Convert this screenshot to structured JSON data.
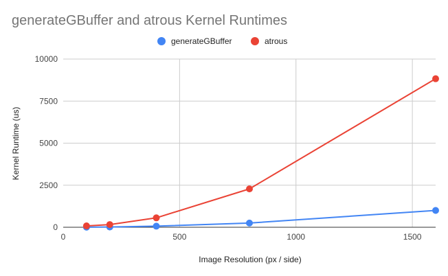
{
  "chart_data": {
    "type": "line",
    "title": "generateGBuffer and atrous Kernel Runtimes",
    "xlabel": "Image Resolution (px / side)",
    "ylabel": "Kernel Runtime (us)",
    "xlim": [
      0,
      1600
    ],
    "ylim": [
      0,
      10000
    ],
    "x_ticks": [
      "0",
      "500",
      "1000",
      "1500"
    ],
    "y_ticks": [
      "0",
      "2500",
      "5000",
      "7500",
      "10000"
    ],
    "grid": true,
    "legend_position": "top",
    "series": [
      {
        "name": "generateGBuffer",
        "color": "#4285f4",
        "points": [
          {
            "x": 100,
            "y": 5
          },
          {
            "x": 200,
            "y": 15
          },
          {
            "x": 400,
            "y": 65
          },
          {
            "x": 800,
            "y": 250
          },
          {
            "x": 1600,
            "y": 1000
          }
        ]
      },
      {
        "name": "atrous",
        "color": "#ea4335",
        "points": [
          {
            "x": 100,
            "y": 80
          },
          {
            "x": 200,
            "y": 160
          },
          {
            "x": 400,
            "y": 560
          },
          {
            "x": 800,
            "y": 2280
          },
          {
            "x": 1600,
            "y": 8830
          }
        ]
      }
    ]
  }
}
